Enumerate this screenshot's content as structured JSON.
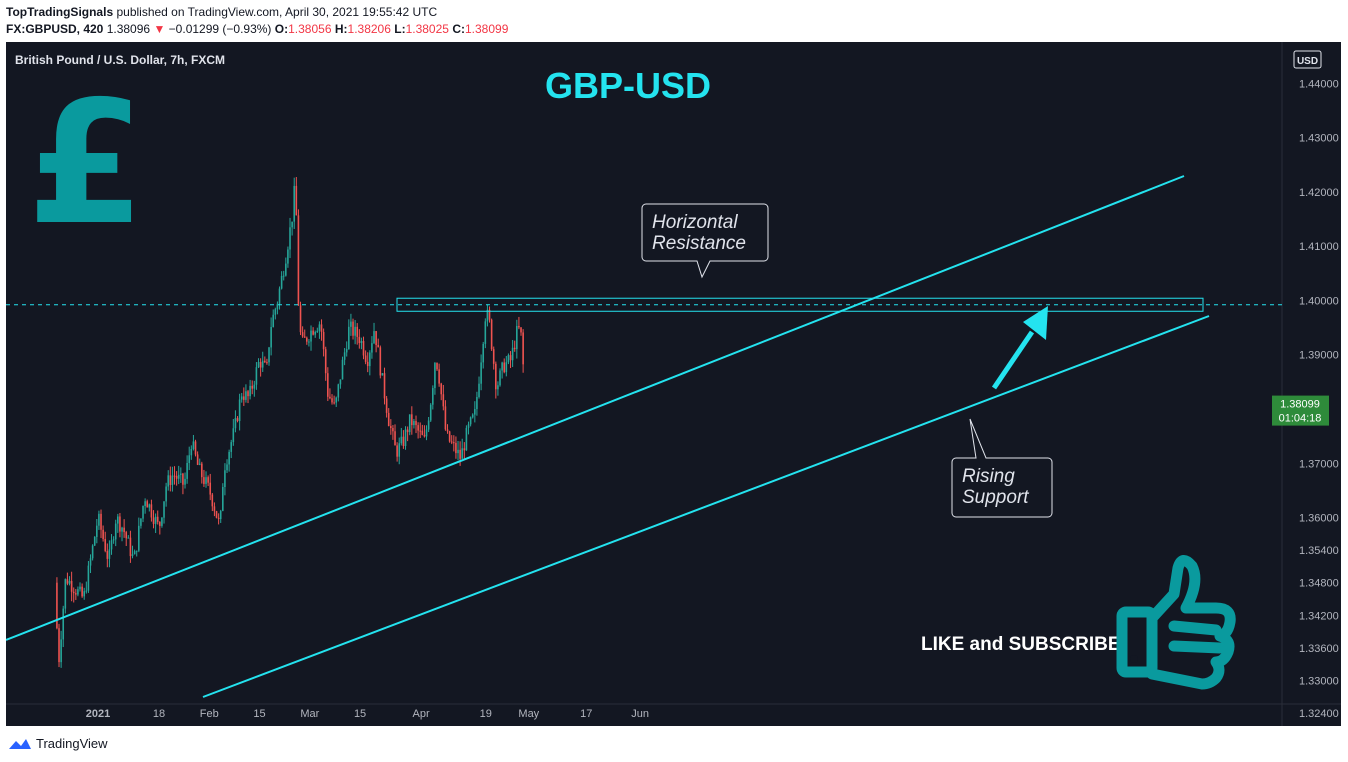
{
  "header": {
    "author": "TopTradingSignals",
    "published_text": "published on TradingView.com, April 30, 2021 19:55:42 UTC",
    "symbol": "FX:GBPUSD, 420",
    "last": "1.38096",
    "change": "−0.01299 (−0.93%)",
    "o_label": "O:",
    "o": "1.38056",
    "h_label": "H:",
    "h": "1.38206",
    "l_label": "L:",
    "l": "1.38025",
    "c_label": "C:",
    "c": "1.38099"
  },
  "chart_data": {
    "type": "candlestick",
    "instrument": "British Pound / U.S. Dollar, 7h, FXCM",
    "title": "GBP-USD",
    "currency_badge": "USD",
    "ylim": [
      1.3216,
      1.4476
    ],
    "yticks": [
      "1.44000",
      "1.43000",
      "1.42000",
      "1.41000",
      "1.40000",
      "1.39000",
      "1.37000",
      "1.36000",
      "1.35400",
      "1.34800",
      "1.34200",
      "1.33600",
      "1.33000",
      "1.32400"
    ],
    "ytick_values": [
      1.44,
      1.43,
      1.42,
      1.41,
      1.4,
      1.39,
      1.37,
      1.36,
      1.354,
      1.348,
      1.342,
      1.336,
      1.33,
      1.324
    ],
    "xticks": [
      "2021",
      "18",
      "Feb",
      "15",
      "Mar",
      "15",
      "Apr",
      "19",
      "May",
      "17",
      "Jun"
    ],
    "xtick_dates": [
      "2021-01-01",
      "2021-01-18",
      "2021-02-01",
      "2021-02-15",
      "2021-03-01",
      "2021-03-15",
      "2021-04-01",
      "2021-04-19",
      "2021-05-01",
      "2021-05-17",
      "2021-06-01"
    ],
    "last_price_label": "1.38099",
    "countdown_label": "01:04:18",
    "resistance_level": 1.3992,
    "resistance_zone": [
      1.398,
      1.4004
    ],
    "close_path": [
      [
        "2020-12-20",
        1.348
      ],
      [
        "2020-12-21",
        1.333
      ],
      [
        "2020-12-23",
        1.349
      ],
      [
        "2020-12-28",
        1.345
      ],
      [
        "2021-01-01",
        1.36
      ],
      [
        "2021-01-04",
        1.352
      ],
      [
        "2021-01-06",
        1.36
      ],
      [
        "2021-01-08",
        1.358
      ],
      [
        "2021-01-11",
        1.352
      ],
      [
        "2021-01-14",
        1.364
      ],
      [
        "2021-01-18",
        1.358
      ],
      [
        "2021-01-20",
        1.366
      ],
      [
        "2021-01-22",
        1.368
      ],
      [
        "2021-01-25",
        1.366
      ],
      [
        "2021-01-27",
        1.374
      ],
      [
        "2021-01-29",
        1.369
      ],
      [
        "2021-02-01",
        1.365
      ],
      [
        "2021-02-02",
        1.363
      ],
      [
        "2021-02-04",
        1.358
      ],
      [
        "2021-02-05",
        1.369
      ],
      [
        "2021-02-08",
        1.376
      ],
      [
        "2021-02-10",
        1.383
      ],
      [
        "2021-02-12",
        1.382
      ],
      [
        "2021-02-15",
        1.389
      ],
      [
        "2021-02-17",
        1.387
      ],
      [
        "2021-02-18",
        1.395
      ],
      [
        "2021-02-20",
        1.4
      ],
      [
        "2021-02-22",
        1.407
      ],
      [
        "2021-02-24",
        1.415
      ],
      [
        "2021-02-25",
        1.422
      ],
      [
        "2021-02-26",
        1.395
      ],
      [
        "2021-02-27",
        1.392
      ],
      [
        "2021-03-01",
        1.394
      ],
      [
        "2021-03-02",
        1.395
      ],
      [
        "2021-03-04",
        1.396
      ],
      [
        "2021-03-06",
        1.383
      ],
      [
        "2021-03-08",
        1.38
      ],
      [
        "2021-03-10",
        1.388
      ],
      [
        "2021-03-12",
        1.395
      ],
      [
        "2021-03-15",
        1.393
      ],
      [
        "2021-03-17",
        1.389
      ],
      [
        "2021-03-19",
        1.395
      ],
      [
        "2021-03-21",
        1.386
      ],
      [
        "2021-03-23",
        1.378
      ],
      [
        "2021-03-25",
        1.372
      ],
      [
        "2021-03-27",
        1.374
      ],
      [
        "2021-03-29",
        1.378
      ],
      [
        "2021-03-31",
        1.376
      ],
      [
        "2021-04-02",
        1.374
      ],
      [
        "2021-04-04",
        1.383
      ],
      [
        "2021-04-05",
        1.39
      ],
      [
        "2021-04-06",
        1.386
      ],
      [
        "2021-04-08",
        1.375
      ],
      [
        "2021-04-10",
        1.373
      ],
      [
        "2021-04-12",
        1.371
      ],
      [
        "2021-04-14",
        1.376
      ],
      [
        "2021-04-16",
        1.379
      ],
      [
        "2021-04-17",
        1.385
      ],
      [
        "2021-04-19",
        1.398
      ],
      [
        "2021-04-20",
        1.396
      ],
      [
        "2021-04-22",
        1.384
      ],
      [
        "2021-04-24",
        1.388
      ],
      [
        "2021-04-26",
        1.389
      ],
      [
        "2021-04-28",
        1.395
      ],
      [
        "2021-04-29",
        1.393
      ],
      [
        "2021-04-30",
        1.381
      ]
    ],
    "annotations": {
      "resistance_label": [
        "Horizontal",
        "Resistance"
      ],
      "support_label": [
        "Rising",
        "Support"
      ]
    }
  },
  "overlay": {
    "pound_symbol": "£",
    "cta_text": "LIKE and SUBSCRIBE"
  },
  "footer": {
    "brand": "TradingView"
  },
  "colors": {
    "background": "#131722",
    "up": "#26a69a",
    "down": "#ef5350",
    "accent_cyan": "#24e3ef",
    "logo_teal": "#0a9a9e",
    "price_tag": "#2e8b3a"
  }
}
